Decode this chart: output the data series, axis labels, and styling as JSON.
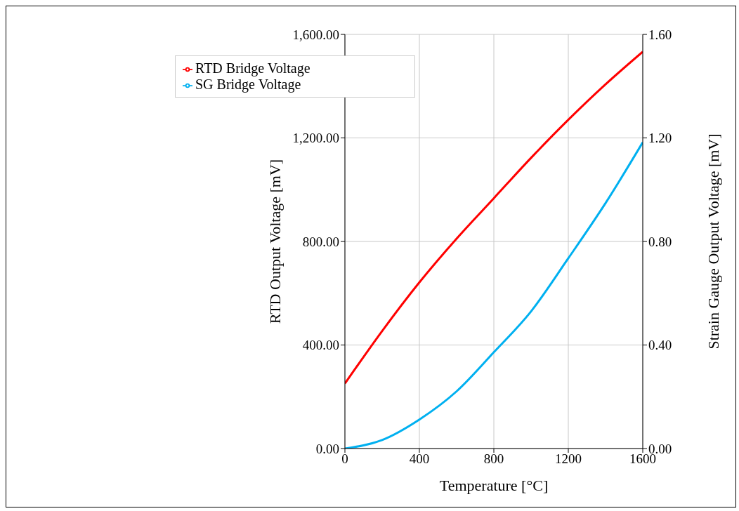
{
  "chart_data": {
    "type": "line",
    "xlabel": "Temperature [°C]",
    "ylabel": "RTD Output Voltage [mV]",
    "y2label": "Strain Gauge Output Voltage [mV]",
    "x": [
      0,
      200,
      400,
      600,
      800,
      1000,
      1200,
      1400,
      1600
    ],
    "series": [
      {
        "name": "RTD Bridge Voltage",
        "color": "#ff0000",
        "values": [
          251,
          454,
          642,
          811,
          967,
          1123,
          1270,
          1407,
          1533
        ]
      },
      {
        "name": "SG Bridge Voltage",
        "color": "#00b0f0",
        "axis": "y2",
        "values": [
          0,
          0.033,
          0.112,
          0.221,
          0.372,
          0.53,
          0.735,
          0.948,
          1.183
        ]
      }
    ],
    "xlim": [
      0,
      1600
    ],
    "xticks": [
      0,
      400,
      800,
      1200,
      1600
    ],
    "ylim": [
      0,
      1600
    ],
    "yticks": [
      {
        "value": 0,
        "label": "0.00"
      },
      {
        "value": 400,
        "label": "400.00"
      },
      {
        "value": 800,
        "label": "800.00"
      },
      {
        "value": 1200,
        "label": "1,200.00"
      },
      {
        "value": 1600,
        "label": "1,600.00"
      }
    ],
    "y2lim": [
      0,
      1.6
    ],
    "y2ticks": [
      {
        "value": 0,
        "label": "0.00"
      },
      {
        "value": 0.4,
        "label": "0.40"
      },
      {
        "value": 0.8,
        "label": "0.80"
      },
      {
        "value": 1.2,
        "label": "1.20"
      },
      {
        "value": 1.6,
        "label": "1.60"
      }
    ],
    "grid": true,
    "legend": "top left",
    "marker": "none",
    "line_style": "solid"
  }
}
